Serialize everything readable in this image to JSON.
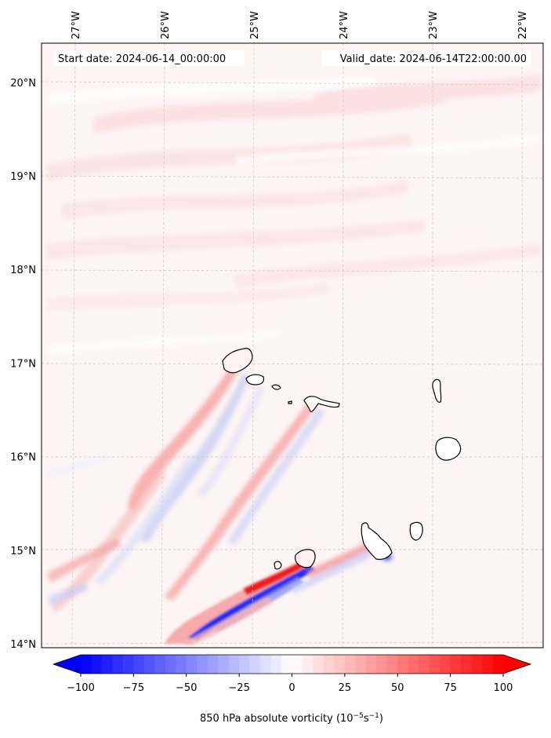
{
  "header": {
    "start_date": "Start date: 2024-06-14_00:00:00",
    "valid_date": "Valid_date: 2024-06-14T22:00:00.00"
  },
  "map": {
    "lon_range": [
      -27.35,
      -21.8
    ],
    "lat_range": [
      13.95,
      20.45
    ],
    "lon_ticks": [
      {
        "value": -27,
        "label": "27°W"
      },
      {
        "value": -26,
        "label": "26°W"
      },
      {
        "value": -25,
        "label": "25°W"
      },
      {
        "value": -24,
        "label": "24°W"
      },
      {
        "value": -23,
        "label": "23°W"
      },
      {
        "value": -22,
        "label": "22°W"
      }
    ],
    "lat_ticks": [
      {
        "value": 20,
        "label": "20°N"
      },
      {
        "value": 19,
        "label": "19°N"
      },
      {
        "value": 18,
        "label": "18°N"
      },
      {
        "value": 17,
        "label": "17°N"
      },
      {
        "value": 16,
        "label": "16°N"
      },
      {
        "value": 15,
        "label": "15°N"
      },
      {
        "value": 14,
        "label": "14°N"
      }
    ]
  },
  "colorbar": {
    "min": -100,
    "max": 100,
    "ticks": [
      {
        "value": -100,
        "label": "−100"
      },
      {
        "value": -75,
        "label": "−75"
      },
      {
        "value": -50,
        "label": "−50"
      },
      {
        "value": -25,
        "label": "−25"
      },
      {
        "value": 0,
        "label": "0"
      },
      {
        "value": 25,
        "label": "25"
      },
      {
        "value": 50,
        "label": "50"
      },
      {
        "value": 75,
        "label": "75"
      },
      {
        "value": 100,
        "label": "100"
      }
    ],
    "label_text": "850 hPa absolute vorticity (",
    "label_units": "10",
    "label_exp1": "−5",
    "label_s": "s",
    "label_exp2": "−1",
    "label_close": ")",
    "negative_color": "#0000ff",
    "positive_color": "#ff0000",
    "neutral_color": "#ffffff"
  },
  "colors": {
    "background_field": "#fdf4f4",
    "gridline": "#c8c8c8",
    "coastline": "#000000"
  }
}
